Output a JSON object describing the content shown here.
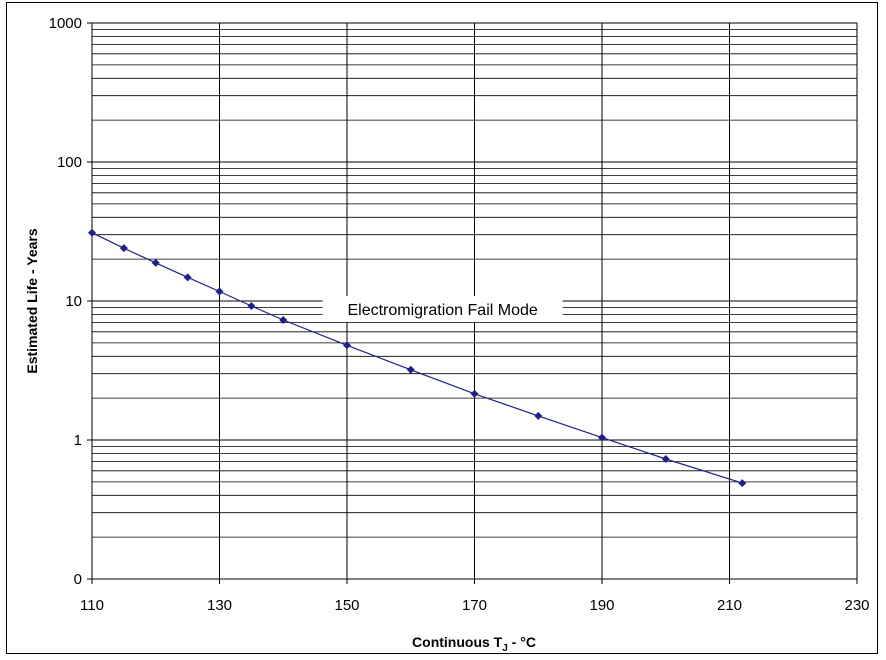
{
  "chart_data": {
    "type": "line",
    "title": "",
    "xlabel_main": "Continuous T",
    "xlabel_sub": "J",
    "xlabel_suffix": " - °C",
    "ylabel": "Estimated Life - Years",
    "xlim": [
      110,
      230
    ],
    "x_ticks": [
      110,
      130,
      150,
      170,
      190,
      210,
      230
    ],
    "y_scale": "log",
    "ylim": [
      0.1,
      1000
    ],
    "y_ticks": [
      {
        "value": 1000,
        "label": "1000"
      },
      {
        "value": 100,
        "label": "100"
      },
      {
        "value": 10,
        "label": "10"
      },
      {
        "value": 1,
        "label": "1"
      },
      {
        "value": 0.1,
        "label": "0"
      }
    ],
    "grid": true,
    "series": [
      {
        "color": "#1f1f8f",
        "marker": "diamond",
        "x": [
          110,
          115,
          120,
          125,
          130,
          135,
          140,
          150,
          160,
          170,
          180,
          190,
          200,
          212
        ],
        "y": [
          31,
          24,
          18.8,
          14.8,
          11.7,
          9.2,
          7.3,
          4.8,
          3.2,
          2.15,
          1.49,
          1.04,
          0.73,
          0.49
        ]
      }
    ],
    "annotation": "Electromigration Fail Mode"
  }
}
